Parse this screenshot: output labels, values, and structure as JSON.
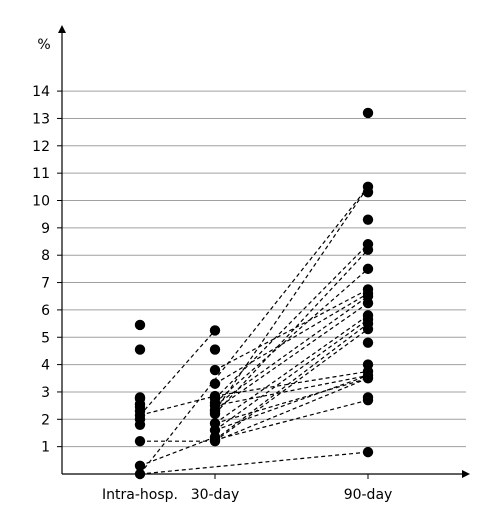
{
  "chart_data": {
    "type": "scatter",
    "title": "",
    "xlabel": "",
    "ylabel": "%",
    "categories": [
      "Intra-hosp.",
      "30-day",
      "90-day"
    ],
    "ylim": [
      0,
      15
    ],
    "yticks": [
      1,
      2,
      3,
      4,
      5,
      6,
      7,
      8,
      9,
      10,
      11,
      12,
      13,
      14
    ],
    "grid": "horizontal",
    "legend": "none",
    "colors": {
      "marker": "#000000",
      "grid": "#a0a0a0",
      "axis": "#000000"
    },
    "points": {
      "Intra-hosp.": [
        5.45,
        4.55,
        2.8,
        2.75,
        2.55,
        2.45,
        2.3,
        2.15,
        2.0,
        1.8,
        1.2,
        0.3,
        0.0
      ],
      "30-day": [
        5.25,
        4.55,
        3.8,
        3.3,
        2.85,
        2.75,
        2.6,
        2.5,
        2.35,
        2.3,
        2.2,
        1.85,
        1.6,
        1.35,
        1.25,
        1.2
      ],
      "90-day": [
        13.2,
        10.5,
        10.3,
        9.3,
        8.4,
        8.2,
        7.5,
        6.75,
        6.6,
        6.5,
        6.25,
        5.8,
        5.65,
        5.5,
        5.3,
        4.8,
        4.0,
        3.75,
        3.6,
        3.5,
        2.8,
        2.7,
        0.8
      ]
    },
    "connections": [
      [
        [
          "Intra-hosp.",
          2.15
        ],
        [
          "30-day",
          2.85
        ]
      ],
      [
        [
          "Intra-hosp.",
          2.15
        ],
        [
          "30-day",
          5.25
        ]
      ],
      [
        [
          "Intra-hosp.",
          1.2
        ],
        [
          "30-day",
          1.2
        ]
      ],
      [
        [
          "Intra-hosp.",
          0.0
        ],
        [
          "90-day",
          10.5
        ]
      ],
      [
        [
          "Intra-hosp.",
          0.3
        ],
        [
          "30-day",
          1.35
        ]
      ],
      [
        [
          "Intra-hosp.",
          0.0
        ],
        [
          "90-day",
          0.8
        ]
      ],
      [
        [
          "30-day",
          2.3
        ],
        [
          "90-day",
          10.5
        ]
      ],
      [
        [
          "30-day",
          2.75
        ],
        [
          "90-day",
          8.4
        ]
      ],
      [
        [
          "30-day",
          2.2
        ],
        [
          "90-day",
          8.2
        ]
      ],
      [
        [
          "30-day",
          2.6
        ],
        [
          "90-day",
          7.5
        ]
      ],
      [
        [
          "30-day",
          3.8
        ],
        [
          "90-day",
          6.75
        ]
      ],
      [
        [
          "30-day",
          3.3
        ],
        [
          "90-day",
          6.6
        ]
      ],
      [
        [
          "30-day",
          2.5
        ],
        [
          "90-day",
          6.5
        ]
      ],
      [
        [
          "30-day",
          2.35
        ],
        [
          "90-day",
          6.25
        ]
      ],
      [
        [
          "30-day",
          1.85
        ],
        [
          "90-day",
          5.8
        ]
      ],
      [
        [
          "30-day",
          1.6
        ],
        [
          "90-day",
          5.65
        ]
      ],
      [
        [
          "30-day",
          1.25
        ],
        [
          "90-day",
          5.5
        ]
      ],
      [
        [
          "30-day",
          1.2
        ],
        [
          "90-day",
          5.3
        ]
      ],
      [
        [
          "30-day",
          2.85
        ],
        [
          "90-day",
          3.75
        ]
      ],
      [
        [
          "30-day",
          2.5
        ],
        [
          "90-day",
          3.6
        ]
      ],
      [
        [
          "30-day",
          1.85
        ],
        [
          "90-day",
          3.5
        ]
      ],
      [
        [
          "30-day",
          1.2
        ],
        [
          "90-day",
          3.5
        ]
      ],
      [
        [
          "30-day",
          1.6
        ],
        [
          "90-day",
          3.6
        ]
      ],
      [
        [
          "30-day",
          1.25
        ],
        [
          "90-day",
          2.7
        ]
      ]
    ]
  }
}
